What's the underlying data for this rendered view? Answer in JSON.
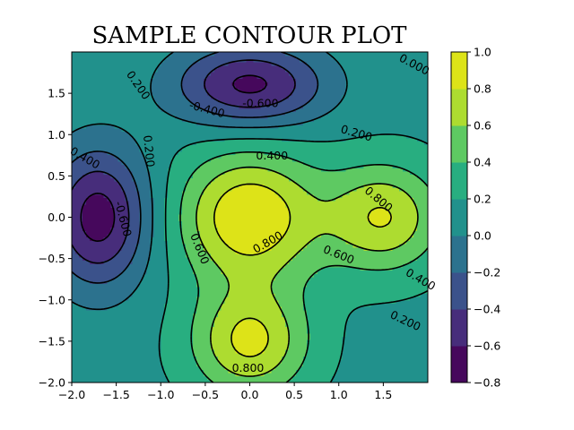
{
  "chart_data": {
    "type": "contour",
    "title": "SAMPLE CONTOUR PLOT",
    "xlabel": "",
    "ylabel": "",
    "xlim": [
      -2.0,
      2.0
    ],
    "ylim": [
      -2.0,
      2.0
    ],
    "x_ticks": [
      -2.0,
      -1.5,
      -1.0,
      -0.5,
      0.0,
      0.5,
      1.0,
      1.5
    ],
    "x_tick_labels": [
      "−2.0",
      "−1.5",
      "−1.0",
      "−0.5",
      "0.0",
      "0.5",
      "1.0",
      "1.5"
    ],
    "y_ticks": [
      -2.0,
      -1.5,
      -1.0,
      -0.5,
      0.0,
      0.5,
      1.0,
      1.5
    ],
    "y_tick_labels": [
      "−2.0",
      "−1.5",
      "−1.0",
      "−0.5",
      "0.0",
      "0.5",
      "1.0",
      "1.5"
    ],
    "filled_levels": [
      -0.8,
      -0.6,
      -0.4,
      -0.2,
      0.0,
      0.2,
      0.4,
      0.6,
      0.8,
      1.0
    ],
    "line_levels": [
      -0.6,
      -0.4,
      -0.2,
      0.0,
      0.2,
      0.4,
      0.6,
      0.8
    ],
    "negative_linestyle": "dashed",
    "colormap": "viridis",
    "colorbar": {
      "position": "right",
      "tick_values": [
        -0.8,
        -0.6,
        -0.4,
        -0.2,
        0.0,
        0.2,
        0.4,
        0.6,
        0.8,
        1.0
      ],
      "tick_labels": [
        "−0.8",
        "−0.6",
        "−0.4",
        "−0.2",
        "0.0",
        "0.2",
        "0.4",
        "0.6",
        "0.8",
        "1.0"
      ],
      "band_colors": [
        "#46085c",
        "#472d7b",
        "#3b528b",
        "#2c728e",
        "#21918c",
        "#28ae80",
        "#5ec962",
        "#addc30",
        "#dde318"
      ]
    },
    "field": {
      "background": 0.15,
      "bumps": [
        {
          "x": 0.0,
          "y": 0.0,
          "amp": 0.85,
          "sx": 0.55,
          "sy": 0.55
        },
        {
          "x": 1.5,
          "y": 0.0,
          "amp": 0.65,
          "sx": 0.45,
          "sy": 0.45
        },
        {
          "x": 0.0,
          "y": -1.5,
          "amp": 0.7,
          "sx": 0.45,
          "sy": 0.45
        },
        {
          "x": -1.7,
          "y": 0.0,
          "amp": -0.85,
          "sx": 0.4,
          "sy": 0.6
        },
        {
          "x": 0.0,
          "y": 1.6,
          "amp": -0.8,
          "sx": 0.6,
          "sy": 0.35
        }
      ]
    },
    "contour_labels": [
      {
        "text": "0.800",
        "x": 0.2,
        "y": -0.3,
        "rotate": -30
      },
      {
        "text": "0.800",
        "x": 1.45,
        "y": 0.22,
        "rotate": 40
      },
      {
        "text": "0.800",
        "x": -0.02,
        "y": -1.82,
        "rotate": 0
      },
      {
        "text": "0.600",
        "x": -0.56,
        "y": -0.38,
        "rotate": 68
      },
      {
        "text": "0.600",
        "x": 1.0,
        "y": -0.45,
        "rotate": 22
      },
      {
        "text": "0.400",
        "x": 0.25,
        "y": 0.75,
        "rotate": 0
      },
      {
        "text": "0.400",
        "x": -1.85,
        "y": 0.72,
        "rotate": 30
      },
      {
        "text": "0.400",
        "x": 1.92,
        "y": -0.75,
        "rotate": 30
      },
      {
        "text": "0.200",
        "x": 1.2,
        "y": 1.02,
        "rotate": 16
      },
      {
        "text": "0.200",
        "x": 1.75,
        "y": -1.25,
        "rotate": 25
      },
      {
        "text": "0.200",
        "x": -1.25,
        "y": 1.6,
        "rotate": 55
      },
      {
        "text": "0.200",
        "x": -1.13,
        "y": 0.8,
        "rotate": 84
      },
      {
        "text": "0.000",
        "x": 1.85,
        "y": 1.85,
        "rotate": 28
      },
      {
        "text": "-0.400",
        "x": -0.48,
        "y": 1.31,
        "rotate": 15
      },
      {
        "text": "-0.600",
        "x": 0.12,
        "y": 1.38,
        "rotate": 0
      },
      {
        "text": "-0.600",
        "x": -1.42,
        "y": -0.02,
        "rotate": 75
      }
    ]
  }
}
